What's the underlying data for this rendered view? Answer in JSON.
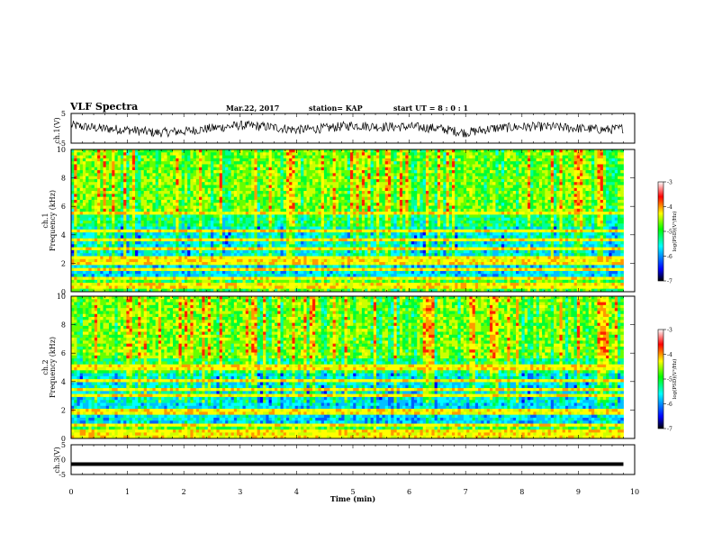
{
  "header": {
    "title": "VLF Spectra",
    "date": "Mar.22, 2017",
    "station": "station= KAP",
    "start_ut": "start  UT =  8 : 0 : 1"
  },
  "colors": {
    "scale": [
      "#000080",
      "#0000ff",
      "#00ffff",
      "#00ff66",
      "#ffff00",
      "#ff8000",
      "#ff0000",
      "#ffffff"
    ],
    "trace": "#000000",
    "frame": "#000000"
  },
  "chart_data": [
    {
      "id": "ch1_waveform",
      "type": "line",
      "ylabel": "ch.1(V)",
      "ylim": [
        -5,
        5
      ],
      "yticks": [
        "5",
        "-5"
      ],
      "xlim": [
        0,
        10
      ],
      "description_values_sample": {
        "x": [
          0,
          0.5,
          1,
          1.5,
          2,
          2.5,
          3,
          3.5,
          4,
          4.5,
          5,
          5.5,
          6,
          6.5,
          7,
          7.5,
          8,
          8.5,
          9,
          9.5,
          9.8
        ],
        "y": [
          1,
          0,
          -0.5,
          -1.5,
          -1,
          0,
          1,
          0.5,
          -0.5,
          0,
          1,
          0.5,
          0.5,
          0,
          -1.5,
          0,
          0.5,
          0.5,
          0,
          -0.5,
          0
        ]
      }
    },
    {
      "id": "ch1_spectrogram",
      "type": "heatmap",
      "ylabel": "ch.1\nFrequency (kHz)",
      "ylim": [
        0,
        10
      ],
      "yticks": [
        "0",
        "2",
        "4",
        "6",
        "8",
        "10"
      ],
      "xlim": [
        0,
        10
      ],
      "data_end_min": 9.8,
      "colorbar": {
        "label": "log(PSD)(V²/Hz)",
        "range": [
          -7,
          -3
        ],
        "ticks": [
          "-3",
          "-4",
          "-5",
          "-6",
          "-7"
        ]
      },
      "bands_khz": [
        0.3,
        0.6,
        1.0,
        1.5,
        2.0,
        2.3,
        3.0,
        3.6,
        4.3,
        5.5
      ]
    },
    {
      "id": "ch2_spectrogram",
      "type": "heatmap",
      "ylabel": "ch.2\nFrequency (kHz)",
      "ylim": [
        0,
        10
      ],
      "yticks": [
        "0",
        "2",
        "4",
        "6",
        "8",
        "10"
      ],
      "xlim": [
        0,
        10
      ],
      "data_end_min": 9.8,
      "colorbar": {
        "label": "log(PSD)(V²/Hz)",
        "range": [
          -7,
          -3
        ],
        "ticks": [
          "-3",
          "-4",
          "-5",
          "-6",
          "-7"
        ]
      },
      "bands_khz": [
        0.2,
        0.5,
        1.0,
        1.7,
        2.0,
        3.0,
        3.4,
        4.0,
        5.0
      ]
    },
    {
      "id": "ch3_waveform",
      "type": "line",
      "ylabel": "ch.3(V)",
      "ylim": [
        -5,
        5
      ],
      "yticks": [
        "5",
        "0",
        "-5"
      ],
      "xlim": [
        0,
        10
      ],
      "xlabel": "Time  (min)",
      "xticks": [
        "0",
        "1",
        "2",
        "3",
        "4",
        "5",
        "6",
        "7",
        "8",
        "9",
        "10"
      ],
      "values": {
        "x": [
          0,
          9.8
        ],
        "y": [
          -1.5,
          -1.5
        ]
      }
    }
  ]
}
